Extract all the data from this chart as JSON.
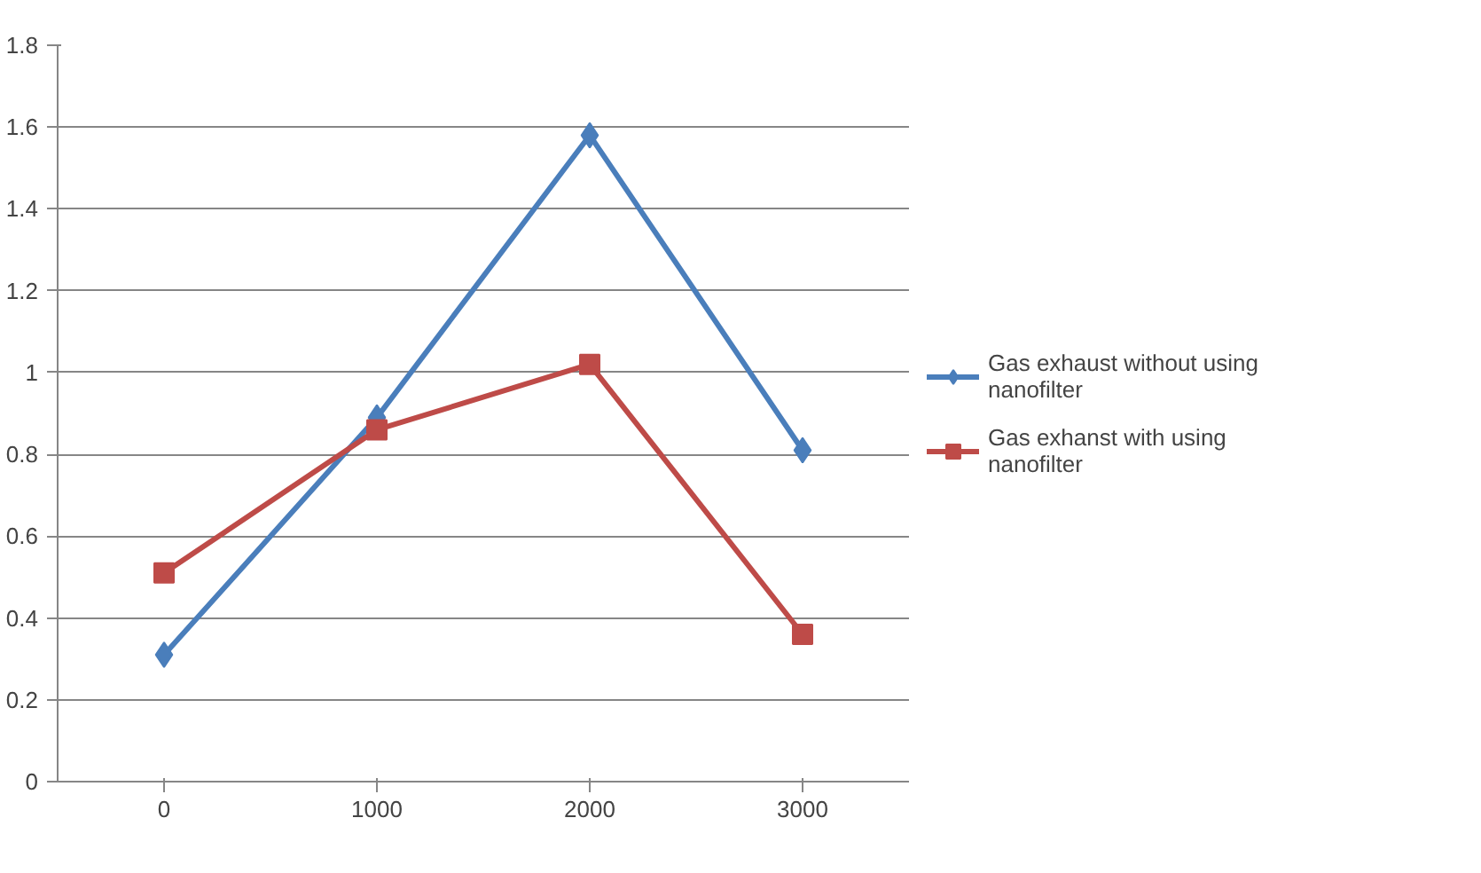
{
  "chart_data": {
    "type": "line",
    "categories": [
      "0",
      "1000",
      "2000",
      "3000"
    ],
    "series": [
      {
        "name": "Gas exhaust without using nanofilter",
        "color": "#4a7ebb",
        "values": [
          0.31,
          0.89,
          1.58,
          0.81
        ],
        "marker": "diamond"
      },
      {
        "name": "Gas exhanst with using nanofilter",
        "color": "#be4b48",
        "values": [
          0.51,
          0.86,
          1.02,
          0.36
        ],
        "marker": "square"
      }
    ],
    "ylim": [
      0,
      1.8
    ],
    "yticks": [
      0,
      0.2,
      0.4,
      0.6,
      0.8,
      1,
      1.2,
      1.4,
      1.6,
      1.8
    ],
    "grid": "y",
    "legend": "right",
    "line_style": "solid"
  }
}
